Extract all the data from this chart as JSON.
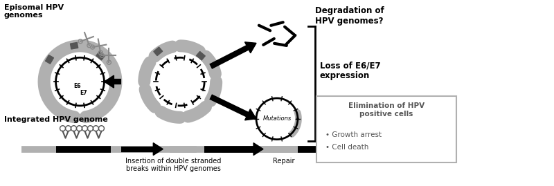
{
  "bg_color": "#ffffff",
  "text_color": "#000000",
  "gray_color": "#888888",
  "light_gray": "#b0b0b0",
  "dark_gray": "#555555",
  "episomal_label": "Episomal HPV\ngenomes",
  "integrated_label": "Integrated HPV genome",
  "degradation_label": "Degradation of\nHPV genomes?",
  "loss_label": "Loss of E6/E7\nexpression",
  "elimination_title": "Elimination of HPV\npositive cells",
  "bullet1": "Growth arrest",
  "bullet2": "Cell death",
  "mutations_label": "Mutations",
  "insertion_label": "Insertion of double stranded\nbreaks within HPV genomes",
  "repair_label": "Repair",
  "e6_label": "E6",
  "e7_label": "E7"
}
